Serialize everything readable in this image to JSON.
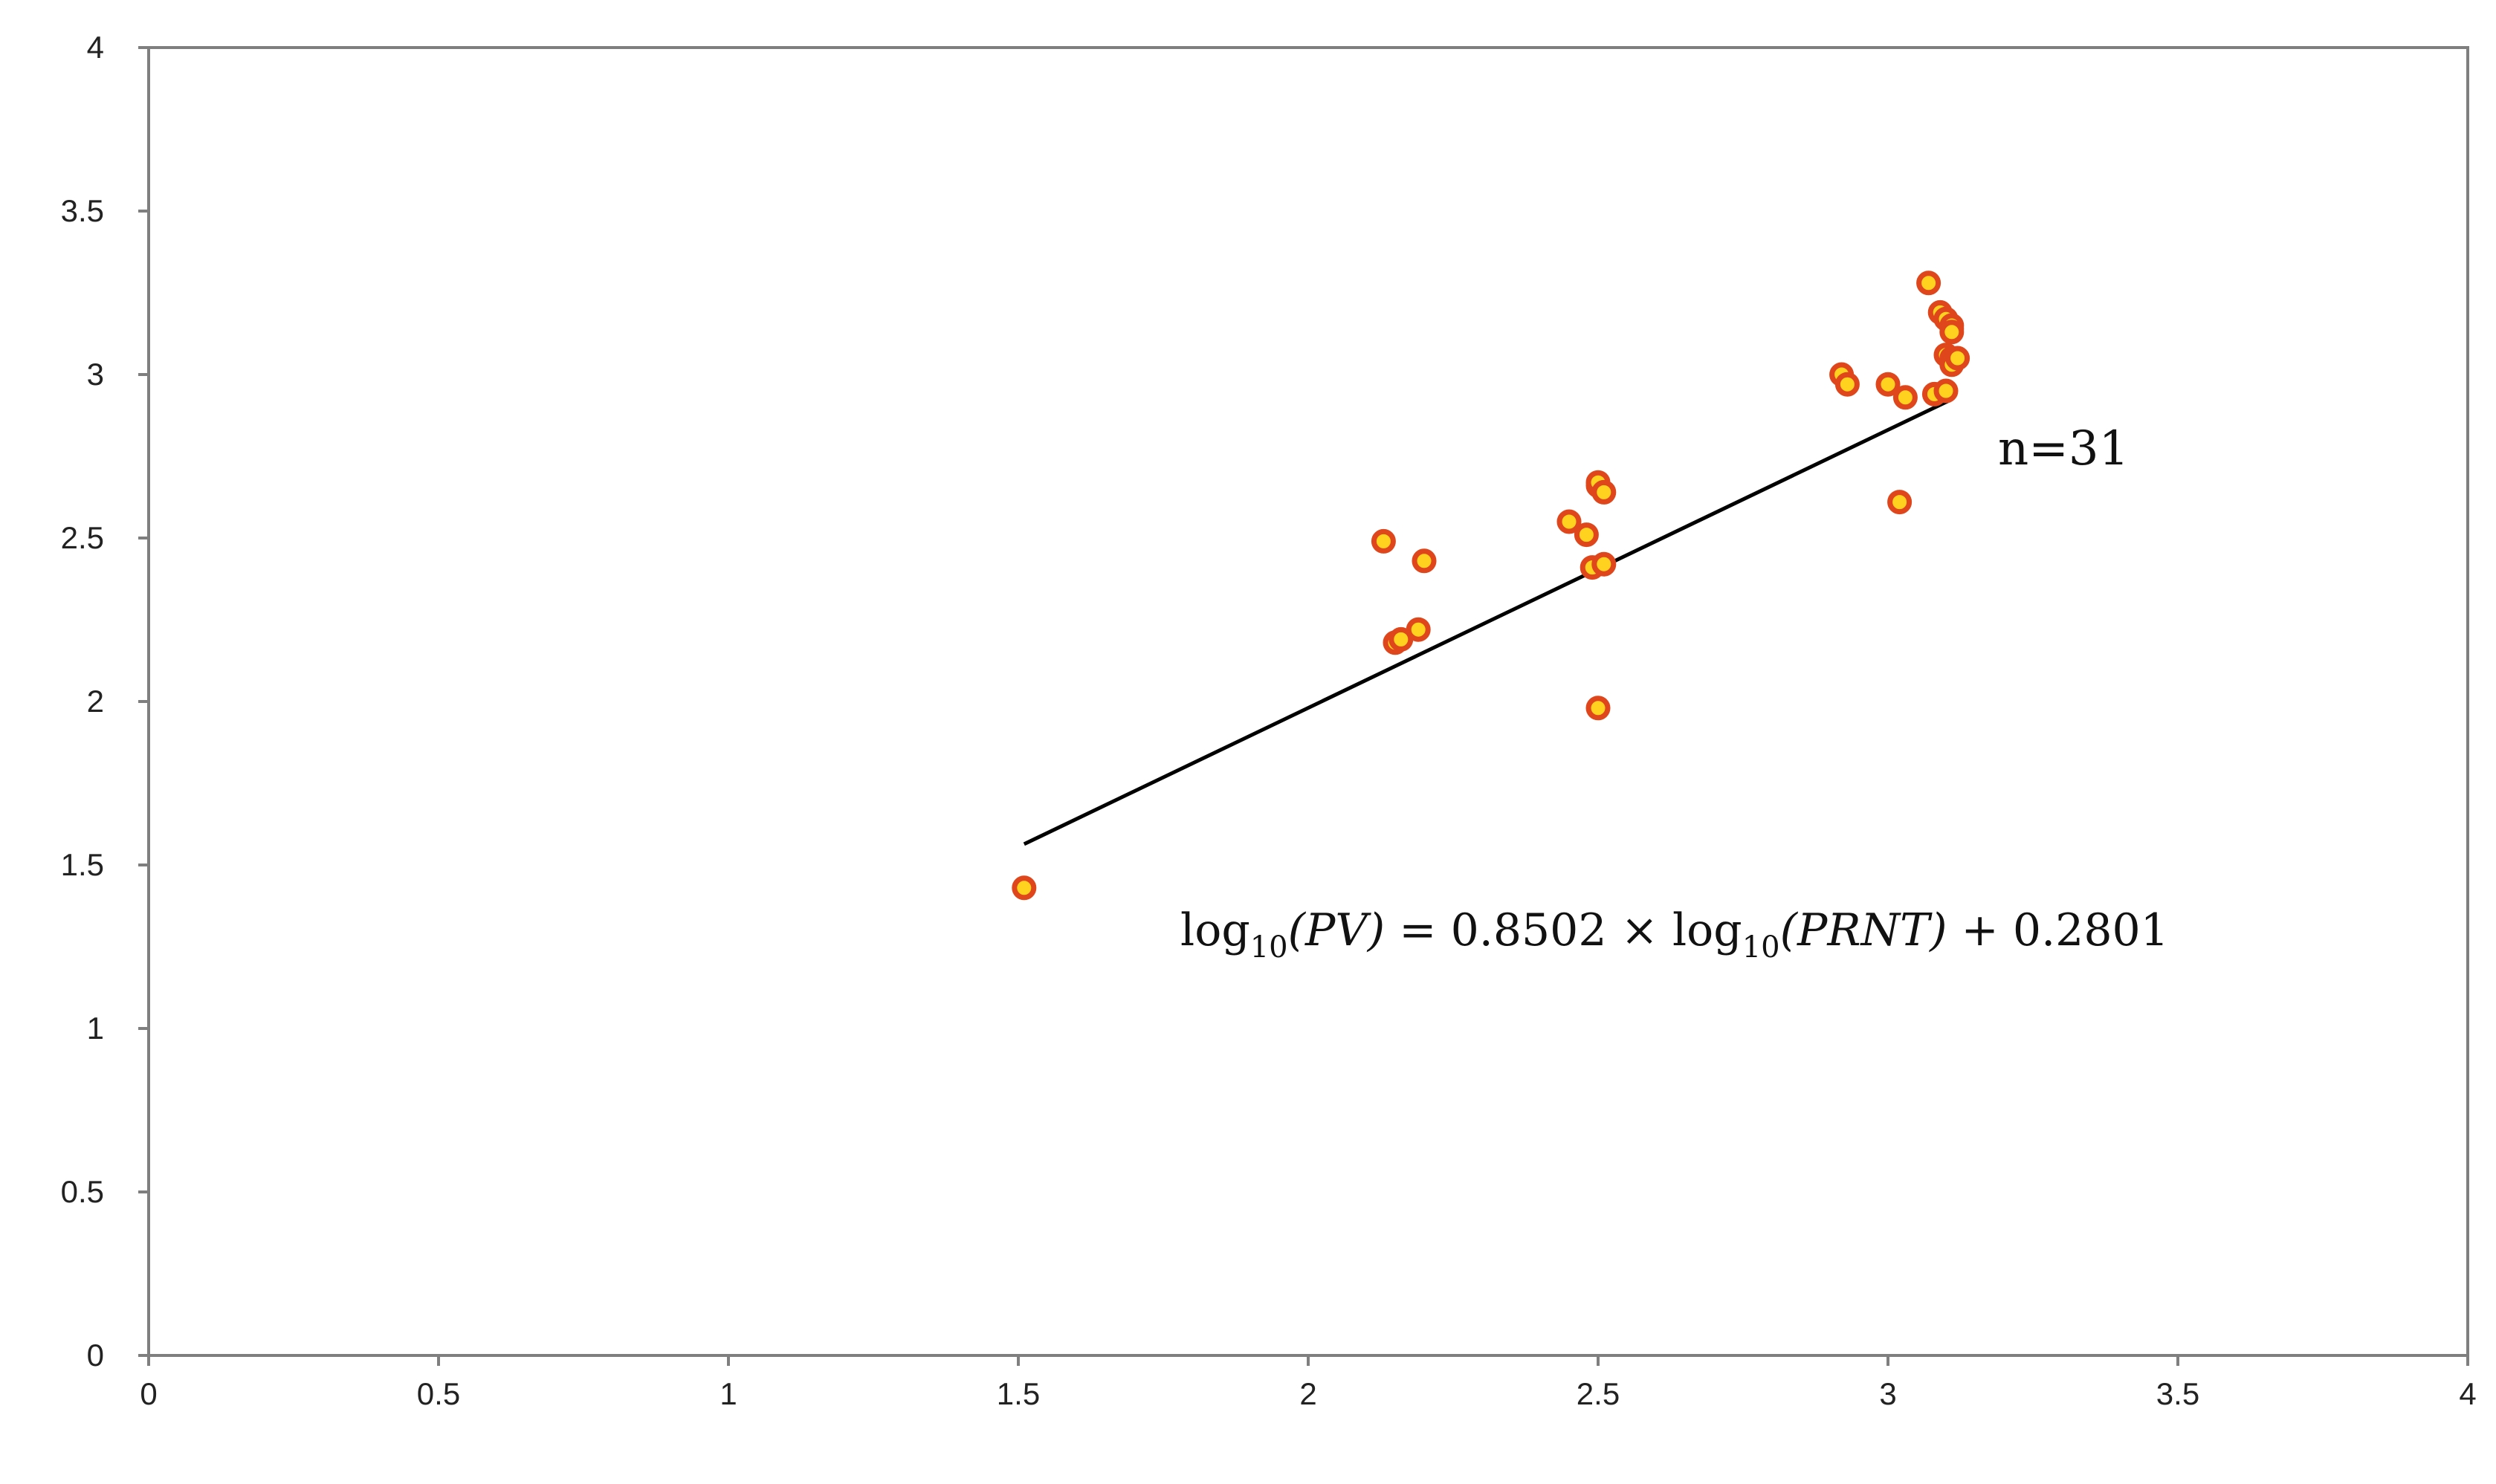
{
  "chart_data": {
    "type": "scatter",
    "title": "",
    "xlabel": "",
    "ylabel": "",
    "xlim": [
      0,
      4
    ],
    "ylim": [
      0,
      4
    ],
    "x_ticks": [
      0,
      0.5,
      1,
      1.5,
      2,
      2.5,
      3,
      3.5,
      4
    ],
    "y_ticks": [
      0,
      0.5,
      1,
      1.5,
      2,
      2.5,
      3,
      3.5,
      4
    ],
    "x_tick_labels": [
      "0",
      "0.5",
      "1",
      "1.5",
      "2",
      "2.5",
      "3",
      "3.5",
      "4"
    ],
    "y_tick_labels": [
      "0",
      "0.5",
      "1",
      "1.5",
      "2",
      "2.5",
      "3",
      "3.5",
      "4"
    ],
    "grid": false,
    "legend": "none",
    "marker_fill": "#ffd21f",
    "marker_edge": "#e0461c",
    "frame_color": "#7f7f7f",
    "series": [
      {
        "points": [
          {
            "x": 1.51,
            "y": 1.43
          },
          {
            "x": 2.13,
            "y": 2.49
          },
          {
            "x": 2.15,
            "y": 2.18
          },
          {
            "x": 2.16,
            "y": 2.19
          },
          {
            "x": 2.19,
            "y": 2.22
          },
          {
            "x": 2.2,
            "y": 2.43
          },
          {
            "x": 2.45,
            "y": 2.55
          },
          {
            "x": 2.48,
            "y": 2.51
          },
          {
            "x": 2.49,
            "y": 2.41
          },
          {
            "x": 2.5,
            "y": 1.98
          },
          {
            "x": 2.5,
            "y": 2.66
          },
          {
            "x": 2.5,
            "y": 2.67
          },
          {
            "x": 2.51,
            "y": 2.64
          },
          {
            "x": 2.51,
            "y": 2.42
          },
          {
            "x": 2.92,
            "y": 3.0
          },
          {
            "x": 2.93,
            "y": 2.97
          },
          {
            "x": 3.0,
            "y": 2.97
          },
          {
            "x": 3.02,
            "y": 2.61
          },
          {
            "x": 3.03,
            "y": 2.93
          },
          {
            "x": 3.07,
            "y": 3.28
          },
          {
            "x": 3.08,
            "y": 2.94
          },
          {
            "x": 3.09,
            "y": 3.19
          },
          {
            "x": 3.1,
            "y": 3.17
          },
          {
            "x": 3.1,
            "y": 3.06
          },
          {
            "x": 3.1,
            "y": 2.95
          },
          {
            "x": 3.11,
            "y": 3.14
          },
          {
            "x": 3.11,
            "y": 3.15
          },
          {
            "x": 3.11,
            "y": 3.13
          },
          {
            "x": 3.11,
            "y": 3.05
          },
          {
            "x": 3.11,
            "y": 3.03
          },
          {
            "x": 3.12,
            "y": 3.05
          }
        ]
      }
    ],
    "trendline": {
      "slope": 0.8502,
      "intercept": 0.2801,
      "x_range": [
        1.51,
        3.11
      ],
      "color": "#000000"
    },
    "annotations": {
      "n_label": "n=31",
      "eq_log": "log",
      "eq_sub": "10",
      "eq_pv": "(PV)",
      "eq_mid": " = 0.8502 × ",
      "eq_prnt": "(PRNT)",
      "eq_tail": " + 0.2801"
    }
  }
}
